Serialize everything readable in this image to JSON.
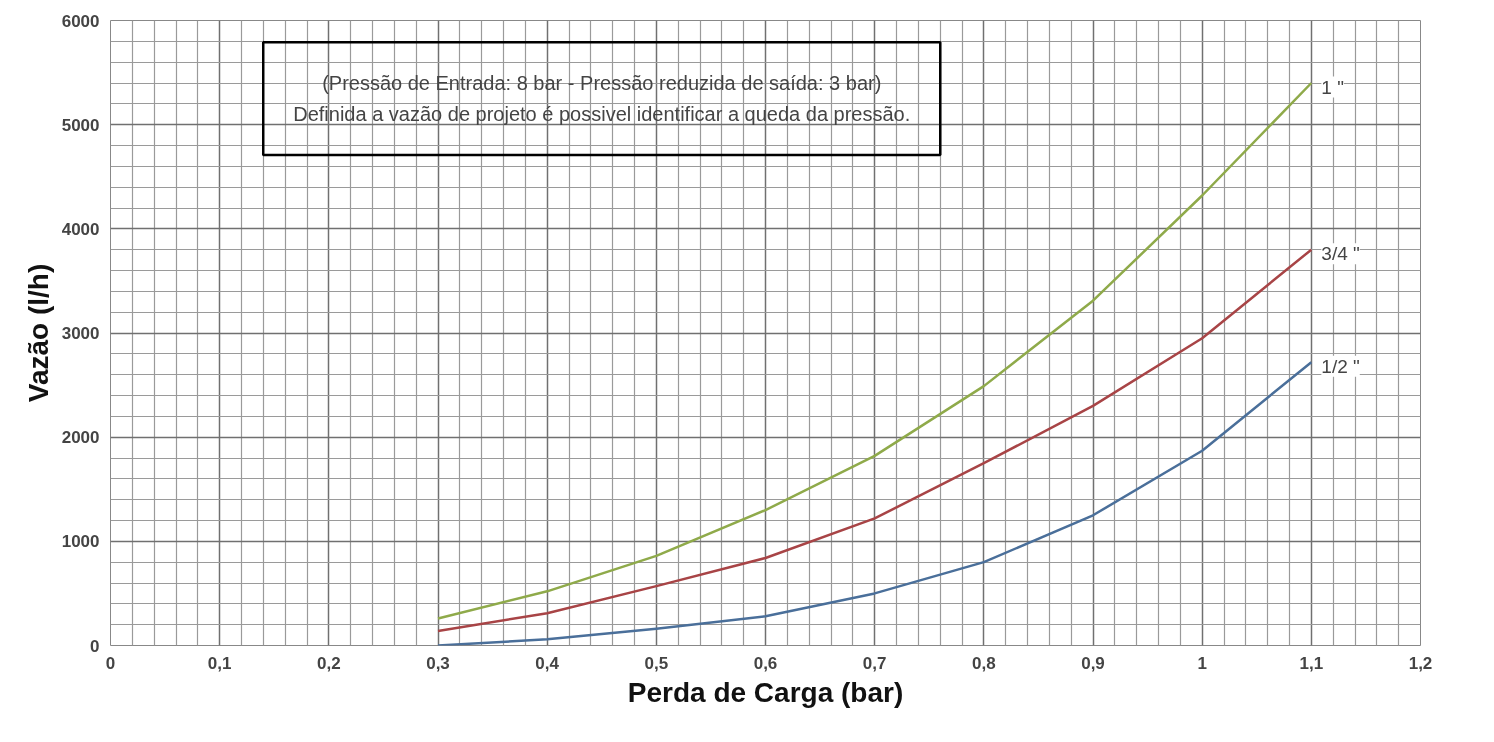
{
  "chart_data": {
    "type": "line",
    "xlabel": "Perda de Carga (bar)",
    "ylabel": "Vazão (l/h)",
    "annotations": [
      "(Pressão de Entrada: 8 bar - Pressão reduzida de saída: 3 bar)",
      "Definida a vazão de projeto é possivel identificar a queda da pressão."
    ],
    "x": [
      0.3,
      0.4,
      0.5,
      0.6,
      0.7,
      0.8,
      0.9,
      1.0,
      1.1
    ],
    "series": [
      {
        "name": "1 \"",
        "color": "#8faa4a",
        "values": [
          260,
          520,
          860,
          1300,
          1820,
          2490,
          3310,
          4320,
          5400
        ]
      },
      {
        "name": "3/4 \"",
        "color": "#a84446",
        "values": [
          140,
          310,
          570,
          840,
          1220,
          1750,
          2300,
          2950,
          3800
        ]
      },
      {
        "name": "1/2 \"",
        "color": "#4a6f9a",
        "values": [
          0,
          60,
          160,
          280,
          500,
          800,
          1250,
          1870,
          2720
        ]
      }
    ],
    "xlim": [
      0,
      1.2
    ],
    "ylim": [
      0,
      6000
    ],
    "xticks": [
      {
        "value": 0,
        "label": "0"
      },
      {
        "value": 0.02,
        "label": null
      },
      {
        "value": 0.04,
        "label": null
      },
      {
        "value": 0.06,
        "label": null
      },
      {
        "value": 0.08,
        "label": null
      },
      {
        "value": 0.1,
        "label": "0,1"
      },
      {
        "value": 0.12,
        "label": null
      },
      {
        "value": 0.14,
        "label": null
      },
      {
        "value": 0.16,
        "label": null
      },
      {
        "value": 0.18,
        "label": null
      },
      {
        "value": 0.2,
        "label": "0,2"
      },
      {
        "value": 0.22,
        "label": null
      },
      {
        "value": 0.24,
        "label": null
      },
      {
        "value": 0.26,
        "label": null
      },
      {
        "value": 0.28,
        "label": null
      },
      {
        "value": 0.3,
        "label": "0,3"
      },
      {
        "value": 0.32,
        "label": null
      },
      {
        "value": 0.34,
        "label": null
      },
      {
        "value": 0.36,
        "label": null
      },
      {
        "value": 0.38,
        "label": null
      },
      {
        "value": 0.4,
        "label": "0,4"
      },
      {
        "value": 0.42,
        "label": null
      },
      {
        "value": 0.44,
        "label": null
      },
      {
        "value": 0.46,
        "label": null
      },
      {
        "value": 0.48,
        "label": null
      },
      {
        "value": 0.5,
        "label": "0,5"
      },
      {
        "value": 0.52,
        "label": null
      },
      {
        "value": 0.54,
        "label": null
      },
      {
        "value": 0.56,
        "label": null
      },
      {
        "value": 0.58,
        "label": null
      },
      {
        "value": 0.6,
        "label": "0,6"
      },
      {
        "value": 0.62,
        "label": null
      },
      {
        "value": 0.64,
        "label": null
      },
      {
        "value": 0.66,
        "label": null
      },
      {
        "value": 0.68,
        "label": null
      },
      {
        "value": 0.7,
        "label": "0,7"
      },
      {
        "value": 0.72,
        "label": null
      },
      {
        "value": 0.74,
        "label": null
      },
      {
        "value": 0.76,
        "label": null
      },
      {
        "value": 0.78,
        "label": null
      },
      {
        "value": 0.8,
        "label": "0,8"
      },
      {
        "value": 0.82,
        "label": null
      },
      {
        "value": 0.84,
        "label": null
      },
      {
        "value": 0.86,
        "label": null
      },
      {
        "value": 0.88,
        "label": null
      },
      {
        "value": 0.9,
        "label": "0,9"
      },
      {
        "value": 0.92,
        "label": null
      },
      {
        "value": 0.94,
        "label": null
      },
      {
        "value": 0.96,
        "label": null
      },
      {
        "value": 0.98,
        "label": null
      },
      {
        "value": 1.0,
        "label": "1"
      },
      {
        "value": 1.02,
        "label": null
      },
      {
        "value": 1.04,
        "label": null
      },
      {
        "value": 1.06,
        "label": null
      },
      {
        "value": 1.08,
        "label": null
      },
      {
        "value": 1.1,
        "label": "1,1"
      },
      {
        "value": 1.12,
        "label": null
      },
      {
        "value": 1.14,
        "label": null
      },
      {
        "value": 1.16,
        "label": null
      },
      {
        "value": 1.18,
        "label": null
      },
      {
        "value": 1.2,
        "label": "1,2"
      }
    ],
    "yticks": [
      0,
      {
        "value": 200,
        "label": null
      },
      {
        "value": 400,
        "label": null
      },
      {
        "value": 600,
        "label": null
      },
      {
        "value": 800,
        "label": null
      },
      1000,
      {
        "value": 1200,
        "label": null
      },
      {
        "value": 1400,
        "label": null
      },
      {
        "value": 1600,
        "label": null
      },
      {
        "value": 1800,
        "label": null
      },
      2000,
      {
        "value": 2200,
        "label": null
      },
      {
        "value": 2400,
        "label": null
      },
      {
        "value": 2600,
        "label": null
      },
      {
        "value": 2800,
        "label": null
      },
      3000,
      {
        "value": 3200,
        "label": null
      },
      {
        "value": 3400,
        "label": null
      },
      {
        "value": 3600,
        "label": null
      },
      {
        "value": 3800,
        "label": null
      },
      4000,
      {
        "value": 4200,
        "label": null
      },
      {
        "value": 4400,
        "label": null
      },
      {
        "value": 4600,
        "label": null
      },
      {
        "value": 4800,
        "label": null
      },
      5000,
      {
        "value": 5200,
        "label": null
      },
      {
        "value": 5400,
        "label": null
      },
      {
        "value": 5600,
        "label": null
      },
      {
        "value": 5800,
        "label": null
      },
      6000
    ],
    "grid": true,
    "marker": "none",
    "line_style": "solid"
  }
}
